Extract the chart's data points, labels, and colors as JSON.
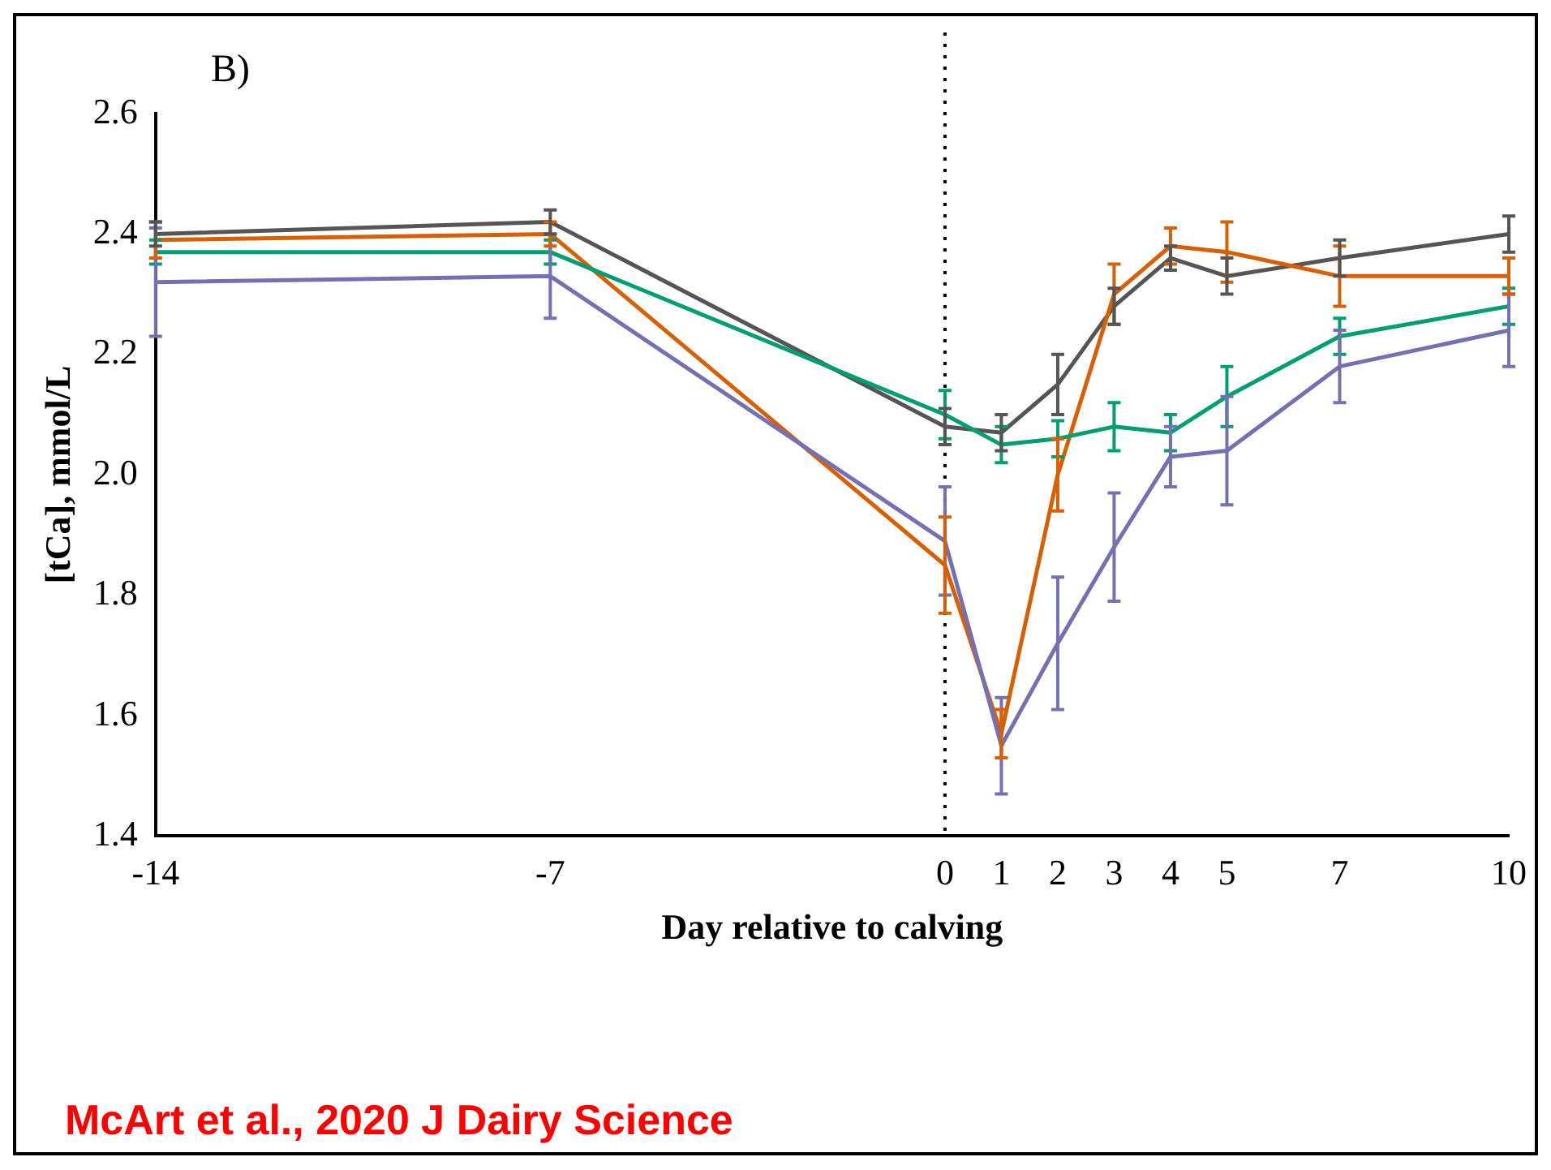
{
  "chart_data": {
    "type": "line",
    "xlabel": "Day relative to calving",
    "ylabel": "[tCa], mmol/L",
    "x": [
      -14,
      -7,
      0,
      1,
      2,
      3,
      4,
      5,
      7,
      10
    ],
    "xlim": [
      -14,
      10
    ],
    "xticks": [
      -14,
      -7,
      0,
      1,
      2,
      3,
      4,
      5,
      7,
      10
    ],
    "ylim": [
      1.4,
      2.6
    ],
    "yticks": [
      1.4,
      1.6,
      1.8,
      {
        "value": 2,
        "label": "2.0"
      },
      2.2,
      2.4,
      2.6
    ],
    "grid": false,
    "legend": false,
    "marker": "none",
    "line_style": "solid",
    "series": [
      {
        "color": "#009e73",
        "values": [
          2.37,
          2.37,
          2.1,
          2.05,
          2.06,
          2.08,
          2.07,
          2.13,
          2.23,
          2.28
        ],
        "errors": [
          0.02,
          0.02,
          0.04,
          0.03,
          0.03,
          0.04,
          0.03,
          0.05,
          0.03,
          0.03
        ]
      },
      {
        "color": "#7570b3",
        "values": [
          2.32,
          2.33,
          1.89,
          1.55,
          1.72,
          1.88,
          2.03,
          2.04,
          2.18,
          2.24
        ],
        "errors": [
          0.09,
          0.07,
          0.09,
          0.08,
          0.11,
          0.09,
          0.05,
          0.09,
          0.06,
          0.06
        ]
      },
      {
        "color": "#d95f02",
        "values": [
          2.39,
          2.4,
          1.85,
          1.57,
          2.0,
          2.3,
          2.38,
          2.37,
          2.33,
          2.33
        ],
        "errors": [
          0.03,
          0.02,
          0.08,
          0.04,
          0.06,
          0.05,
          0.03,
          0.05,
          0.05,
          0.03
        ]
      },
      {
        "color": "#555555",
        "values": [
          2.4,
          2.42,
          2.08,
          2.07,
          2.15,
          2.28,
          2.36,
          2.33,
          2.36,
          2.4
        ],
        "errors": [
          0.02,
          0.02,
          0.03,
          0.03,
          0.05,
          0.03,
          0.02,
          0.03,
          0.03,
          0.03
        ]
      }
    ],
    "ref_lines": [
      {
        "axis": "x",
        "value": 0,
        "color": "#000000",
        "line_style": "dotted"
      }
    ],
    "annotations": [
      "B)",
      "McArt et al., 2020 J Dairy Science"
    ]
  }
}
